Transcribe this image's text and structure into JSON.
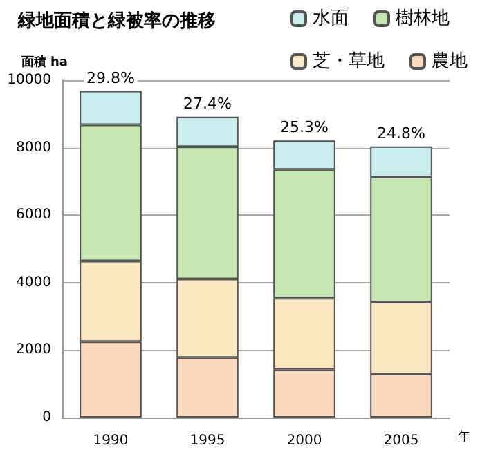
{
  "chart_data": {
    "type": "bar",
    "stacked": true,
    "title": "緑地面積と緑被率の推移",
    "ylabel": "面積 ha",
    "xlabel": "年",
    "categories": [
      "1990",
      "1995",
      "2000",
      "2005"
    ],
    "series": [
      {
        "name": "農地",
        "color": "#fcd9bb",
        "values": [
          2250,
          1780,
          1420,
          1290
        ]
      },
      {
        "name": "芝・草地",
        "color": "#fbe8c0",
        "values": [
          2390,
          2330,
          2120,
          2130
        ]
      },
      {
        "name": "樹林地",
        "color": "#c6e7b0",
        "values": [
          4040,
          3920,
          3810,
          3710
        ]
      },
      {
        "name": "水面",
        "color": "#c9eef0",
        "values": [
          1000,
          890,
          860,
          910
        ]
      }
    ],
    "annotations": [
      {
        "text": "29.8%",
        "x": "1990",
        "y": 9680
      },
      {
        "text": "27.4%",
        "x": "1995",
        "y": 8920
      },
      {
        "text": "25.3%",
        "x": "2000",
        "y": 8210
      },
      {
        "text": "24.8%",
        "x": "2005",
        "y": 8040
      }
    ],
    "ylim": [
      0,
      10000
    ],
    "yticks": [
      0,
      2000,
      4000,
      6000,
      8000,
      10000
    ],
    "grid": "y",
    "legend": "top right"
  }
}
